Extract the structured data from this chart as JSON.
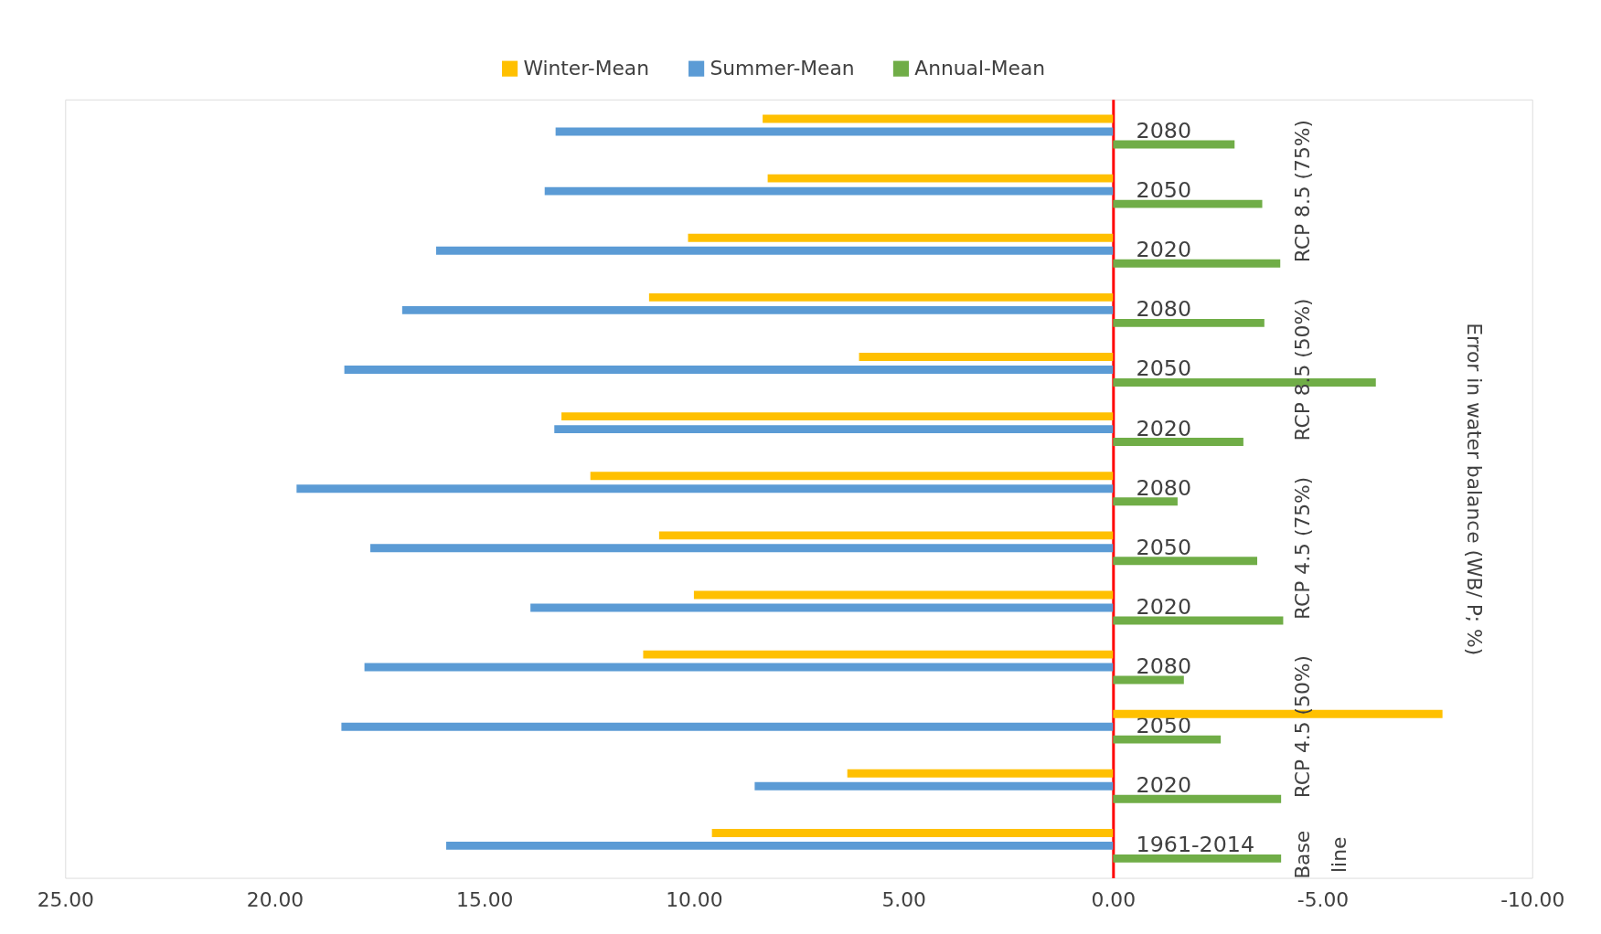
{
  "chart_data": {
    "type": "bar",
    "orientation": "horizontal",
    "ylabel": "Error in water balance (WB/ P; %)",
    "categories": [
      "2080",
      "2050",
      "2020",
      "2080",
      "2050",
      "2020",
      "2080",
      "2050",
      "2020",
      "2080",
      "2050",
      "2020",
      "1961-2014"
    ],
    "series": [
      {
        "name": "Winter-Mean",
        "color": "#ffc000",
        "values": [
          8.36,
          8.24,
          10.14,
          11.07,
          6.06,
          13.16,
          12.47,
          10.83,
          10.0,
          11.21,
          -7.86,
          6.34,
          9.57
        ]
      },
      {
        "name": "Summer-Mean",
        "color": "#5b9bd5",
        "values": [
          13.3,
          13.56,
          16.15,
          16.96,
          18.34,
          13.33,
          19.48,
          17.72,
          13.9,
          17.86,
          18.41,
          8.55,
          15.91
        ]
      },
      {
        "name": "Annual-Mean",
        "color": "#70ad47",
        "values": [
          -2.9,
          -3.56,
          -3.99,
          -3.61,
          -6.27,
          -3.11,
          -1.54,
          -3.44,
          -4.06,
          -1.69,
          -2.57,
          -4.01,
          -4.01
        ]
      }
    ],
    "annotations": [
      "RCP 8.5 (75%)",
      "RCP 8.5 (50%)",
      "RCP 4.5 (75%)",
      "RCP 4.5 (50%)",
      "Base line"
    ],
    "xlim": [
      25,
      -10
    ],
    "xticks": [
      {
        "value": 25,
        "label": "25.00"
      },
      {
        "value": 20,
        "label": "20.00"
      },
      {
        "value": 15,
        "label": "15.00"
      },
      {
        "value": 10,
        "label": "10.00"
      },
      {
        "value": 5,
        "label": "5.00"
      },
      {
        "value": 0,
        "label": "0.00"
      },
      {
        "value": -5,
        "label": "-5.00"
      },
      {
        "value": -10,
        "label": "-10.00"
      }
    ],
    "legend": "top",
    "grid": false
  }
}
